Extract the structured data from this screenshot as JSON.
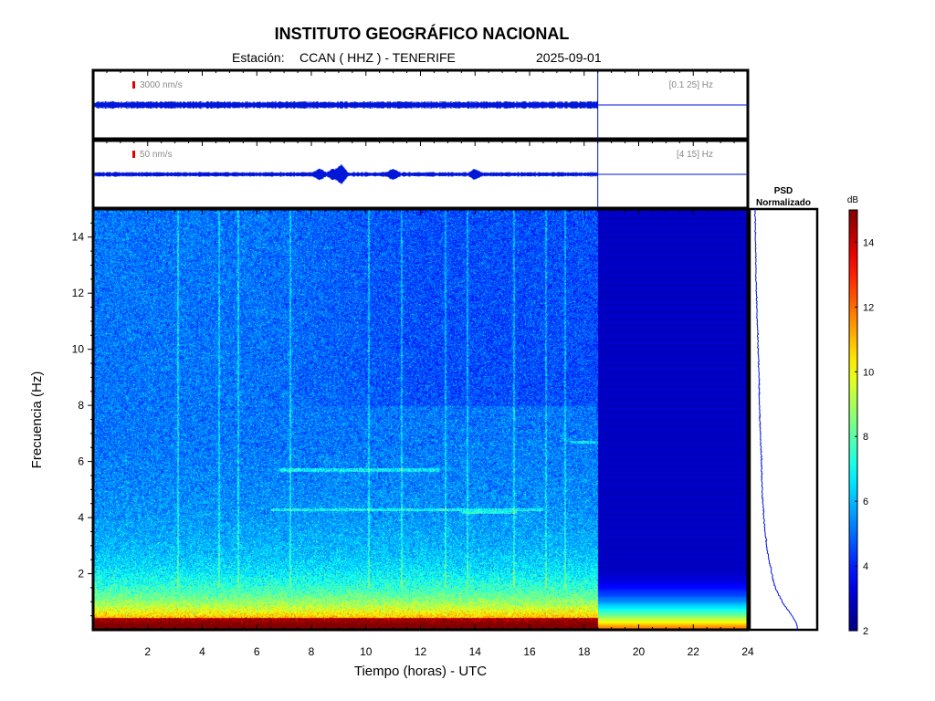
{
  "header": {
    "title": "INSTITUTO GEOGRÁFICO NACIONAL",
    "station_prefix": "Estación:",
    "station": "CCAN ( HHZ ) - TENERIFE",
    "date": "2025-09-01"
  },
  "chart_data": [
    {
      "type": "line",
      "name": "waveform-broadband",
      "amplitude_scale_label": "3000 nm/s",
      "filter_label": "[0.1 25] Hz",
      "data_end_hour": 18.5,
      "xlim": [
        0,
        24
      ]
    },
    {
      "type": "line",
      "name": "waveform-highband",
      "amplitude_scale_label": "50 nm/s",
      "filter_label": "[4 15] Hz",
      "data_end_hour": 18.5,
      "xlim": [
        0,
        24
      ],
      "bursts_hours": [
        8.3,
        8.8,
        9.1,
        11.0,
        14.0
      ]
    },
    {
      "type": "heatmap",
      "name": "spectrogram",
      "xlabel": "Tiempo (horas) - UTC",
      "ylabel": "Frecuencia  (Hz)",
      "xlim": [
        0,
        24
      ],
      "ylim": [
        0,
        15
      ],
      "x_ticks": [
        2,
        4,
        6,
        8,
        10,
        12,
        14,
        16,
        18,
        20,
        22,
        24
      ],
      "y_ticks": [
        2,
        4,
        6,
        8,
        10,
        12,
        14
      ],
      "data_end_hour": 18.5,
      "colorbar": {
        "label": "dB",
        "min": 2,
        "max": 15,
        "ticks": [
          2,
          4,
          6,
          8,
          10,
          12,
          14
        ]
      }
    },
    {
      "type": "line",
      "name": "psd-normalized",
      "title_line1": "PSD",
      "title_line2": "Normalizado",
      "y_frequency_hz": [
        0.2,
        0.5,
        1,
        1.5,
        2,
        3,
        4,
        5,
        6,
        7,
        8,
        9,
        10,
        11,
        12,
        13,
        14,
        15
      ],
      "x_normalized": [
        1.0,
        0.88,
        0.66,
        0.5,
        0.42,
        0.3,
        0.24,
        0.2,
        0.19,
        0.16,
        0.14,
        0.13,
        0.11,
        0.09,
        0.07,
        0.06,
        0.05,
        0.04
      ]
    }
  ]
}
